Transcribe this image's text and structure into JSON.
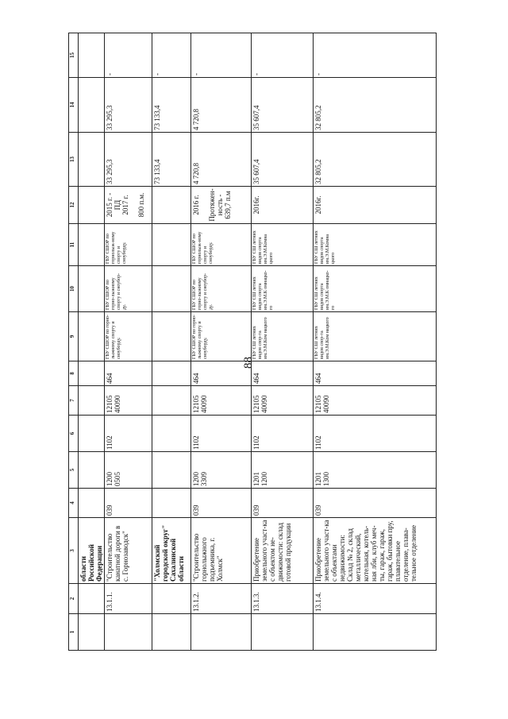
{
  "page_number": "88",
  "table": {
    "headers": [
      "1",
      "2",
      "3",
      "4",
      "5",
      "6",
      "7",
      "8",
      "9",
      "10",
      "11",
      "12",
      "13",
      "14",
      "15"
    ],
    "rows": [
      [
        "",
        "",
        "области Российской Федерации",
        "",
        "",
        "",
        "",
        "",
        "",
        "",
        "",
        "",
        "",
        "",
        ""
      ],
      [
        "",
        "13.1.1.",
        "\"Строительство канатной дороги в с. Горнозаводск\"",
        "039",
        "1200\n0505",
        "1102",
        "12105\n40090",
        "464",
        "ГБУ СШОР по горно-лыжному спорту и сноуборду.",
        "ГБУ СШОР по горно-лыжному спорту и сноубор-ду.",
        "ГБУ СШОР по горнолыж-ному спорту и сноуборду.",
        "2015 г. -\nПД\n2017 г.\n\n800 п.м.",
        "33 295,3",
        "33 295,3",
        "-"
      ],
      [
        "",
        "",
        "\"Холмский городской округ\" Сахалинской области",
        "",
        "",
        "",
        "",
        "",
        "",
        "",
        "",
        "",
        "73 133,4",
        "73 133,4",
        "-"
      ],
      [
        "",
        "13.1.2.",
        "\"Строительство горнолыжного подъемника, г. Холмск\"",
        "039",
        "1200\n3309",
        "1102",
        "12105\n40090",
        "464",
        "ГБУ СШОР по горно-лыжному спорту и сноуборду.",
        "ГБУ СШОР по горно-лыжному спорту и сноубор-ду.",
        "ГБУ СШОР по горнолыж-ному спорту и сноуборду.",
        "2016 г.\n\nПротяжен-ность -\n639,7 п.м",
        "4 720,8",
        "4 720,8",
        "-"
      ],
      [
        "",
        "13.1.3.",
        "Приобретение земельного участ-ка с объектом не-движимости: склад готовой продукции",
        "039",
        "1201\n1200",
        "1102",
        "12105\n40090",
        "464",
        "ГБУ СШ летних видов спор-та им.Э.М.Ком нацкого",
        "ГБУ СШ летних видов спорта им.Э.М.К омнацко-го",
        "ГБУ СШ летних видов спорта им.Э.М.Комна цкого",
        "2016г.",
        "35 607,4",
        "35 607,4",
        "-"
      ],
      [
        "",
        "13.1.4.",
        "Приобретение земельного участ-ка с объектами недвижимости: Склад № 2, склад металлический, котельная, котель-ная лби, клуб меч-ты, гараж, гараж, гараж, бытовки пру, плавательное отделение, плава-тельное отделение",
        "039",
        "1201\n1300",
        "1102",
        "12105\n40090",
        "464",
        "ГБУ СШ летних видов спор-та им.Э.М.Ком нацкого",
        "ГБУ СШ летних видов спорта им.Э.М.К омнацко-го",
        "ГБУ СШ летних видов спорта им.Э.М.Комна цкого",
        "2016г.",
        "32 805,2",
        "32 805,2",
        "-"
      ]
    ]
  }
}
